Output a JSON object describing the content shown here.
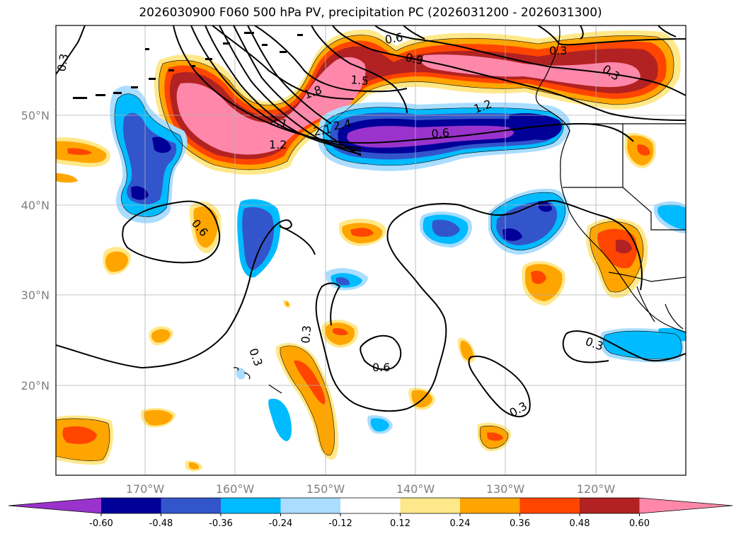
{
  "title": "2026030900 F060 500 hPa PV, precipitation PC (2026031200 - 2026031300)",
  "lat_labels": [
    "50°N",
    "40°N",
    "30°N",
    "20°N"
  ],
  "lon_labels": [
    "170°W",
    "160°W",
    "150°W",
    "140°W",
    "130°W",
    "120°W"
  ],
  "colorbar": {
    "ticks": [
      "-0.60",
      "-0.48",
      "-0.36",
      "-0.24",
      "-0.12",
      "0.12",
      "0.24",
      "0.36",
      "0.48",
      "0.60"
    ],
    "colors": [
      "#9933CC",
      "#000099",
      "#3355CC",
      "#00BBFF",
      "#AADDFF",
      "#FFFFFF",
      "#FFE88A",
      "#FFA500",
      "#FF4500",
      "#B22222",
      "#FF88AA"
    ]
  },
  "contour_labels": [
    "0.3",
    "0.6",
    "0.9",
    "0.3",
    "0.3",
    "1.8",
    "1.5",
    "2.1",
    "2.1",
    "2.4",
    "1.2",
    "1.2",
    "0.6",
    "0.6",
    "0.3",
    "0.3",
    "0.6",
    "0.3",
    "0.3"
  ],
  "colors": {
    "lat_lon_label": "#808080",
    "grid": "#b0b0b0"
  }
}
